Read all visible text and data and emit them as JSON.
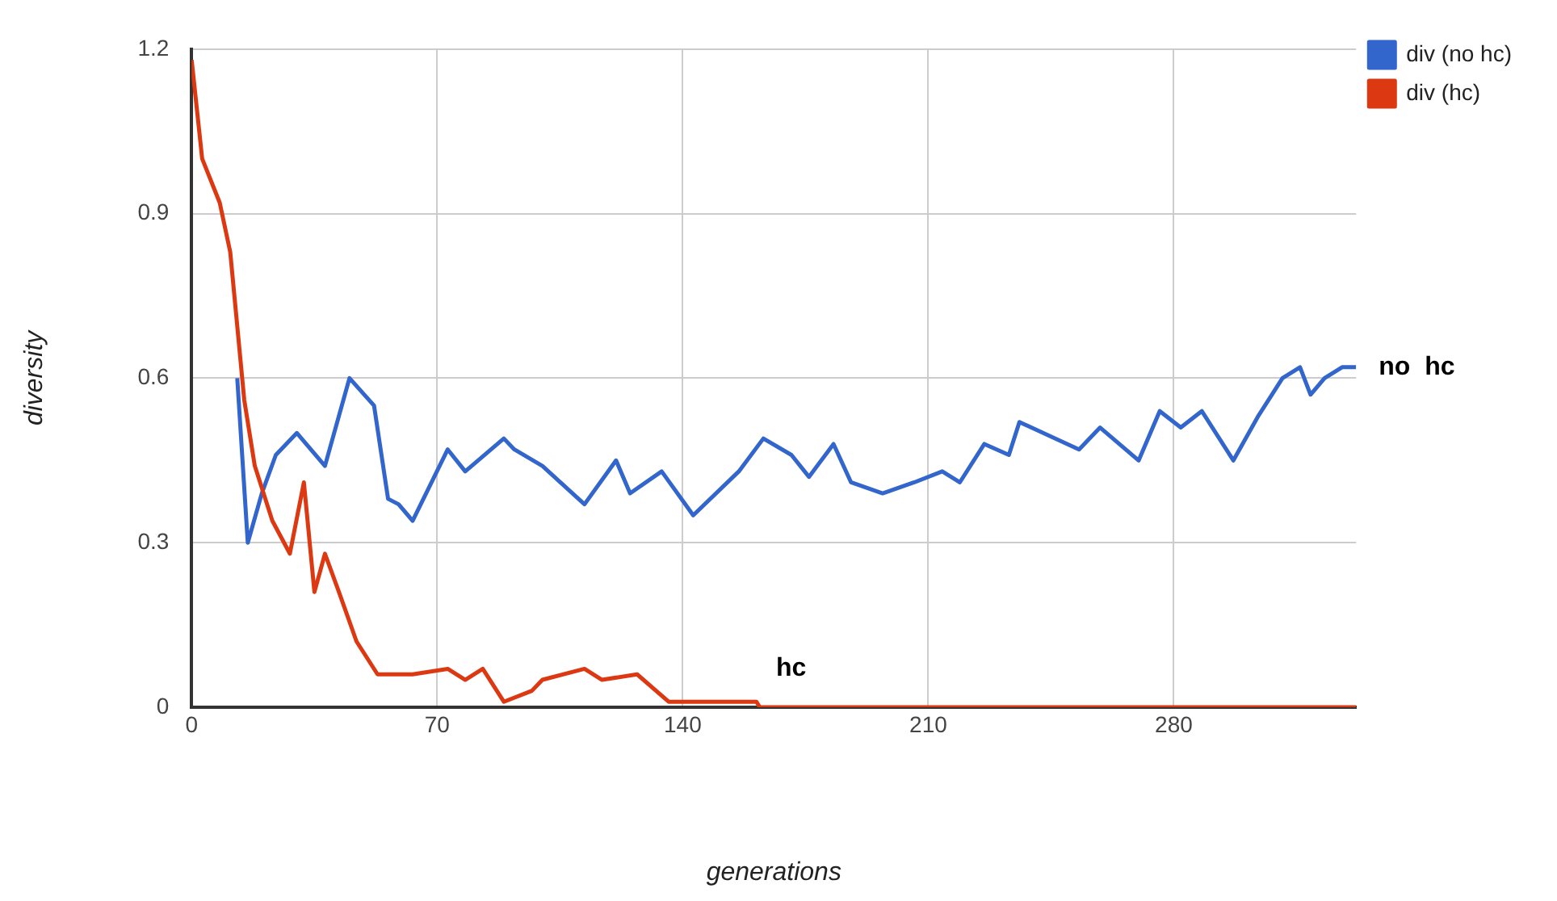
{
  "chart_data": {
    "type": "line",
    "xlabel": "generations",
    "ylabel": "diversity",
    "xlim": [
      0,
      332
    ],
    "ylim": [
      0,
      1.2
    ],
    "xticks": [
      0,
      70,
      140,
      210,
      280
    ],
    "yticks": [
      0,
      0.3,
      0.6,
      0.9,
      1.2
    ],
    "grid": true,
    "legend": "top right",
    "marker": "none",
    "line_style": "solid",
    "series": [
      {
        "name": "div (no hc)",
        "color": "#3366cc",
        "x": [
          13,
          16,
          20,
          24,
          30,
          38,
          45,
          52,
          56,
          59,
          63,
          73,
          78,
          89,
          92,
          100,
          112,
          121,
          125,
          134,
          143,
          156,
          163,
          171,
          176,
          183,
          188,
          197,
          206,
          214,
          219,
          226,
          233,
          236,
          253,
          259,
          270,
          276,
          282,
          288,
          297,
          304,
          311,
          316,
          319,
          323,
          328,
          332
        ],
        "values": [
          0.6,
          0.3,
          0.39,
          0.46,
          0.5,
          0.44,
          0.6,
          0.55,
          0.38,
          0.37,
          0.34,
          0.47,
          0.43,
          0.49,
          0.47,
          0.44,
          0.37,
          0.45,
          0.39,
          0.43,
          0.35,
          0.43,
          0.49,
          0.46,
          0.42,
          0.48,
          0.41,
          0.39,
          0.41,
          0.43,
          0.41,
          0.48,
          0.46,
          0.52,
          0.47,
          0.51,
          0.45,
          0.54,
          0.51,
          0.54,
          0.45,
          0.53,
          0.6,
          0.62,
          0.57,
          0.6,
          0.62,
          0.62
        ]
      },
      {
        "name": "div (hc)",
        "color": "#dc3912",
        "x": [
          0,
          3,
          8,
          11,
          15,
          18,
          23,
          28,
          32,
          35,
          38,
          42,
          47,
          53,
          63,
          73,
          78,
          83,
          89,
          97,
          100,
          112,
          117,
          127,
          136,
          161,
          162,
          332
        ],
        "values": [
          1.18,
          1.0,
          0.92,
          0.83,
          0.56,
          0.44,
          0.34,
          0.28,
          0.41,
          0.21,
          0.28,
          0.21,
          0.12,
          0.06,
          0.06,
          0.07,
          0.05,
          0.07,
          0.01,
          0.03,
          0.05,
          0.07,
          0.05,
          0.06,
          0.01,
          0.01,
          0,
          0
        ]
      }
    ],
    "annotations": [
      "no  hc",
      "hc"
    ]
  }
}
